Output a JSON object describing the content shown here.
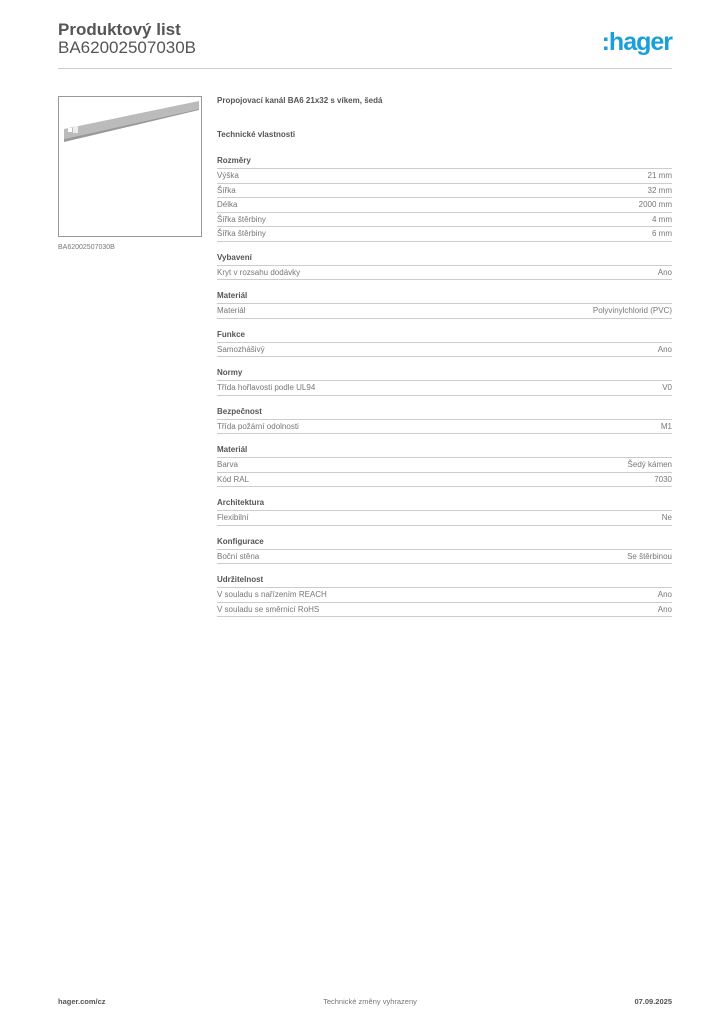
{
  "header": {
    "title": "Produktový list",
    "code": "BA62002507030B",
    "logo": ":hager"
  },
  "image": {
    "caption": "BA62002507030B"
  },
  "product_name": "Propojovací kanál BA6 21x32 s víkem, šedá",
  "tech_heading": "Technické vlastnosti",
  "sections": [
    {
      "title": "Rozměry",
      "rows": [
        [
          "Výška",
          "21 mm"
        ],
        [
          "Šířka",
          "32 mm"
        ],
        [
          "Délka",
          "2000 mm"
        ],
        [
          "Šířka štěrbiny",
          "4 mm"
        ],
        [
          "Šířka štěrbiny",
          "6 mm"
        ]
      ]
    },
    {
      "title": "Vybavení",
      "rows": [
        [
          "Kryt v rozsahu dodávky",
          "Ano"
        ]
      ]
    },
    {
      "title": "Materiál",
      "rows": [
        [
          "Materiál",
          "Polyvinylchlorid (PVC)"
        ]
      ]
    },
    {
      "title": "Funkce",
      "rows": [
        [
          "Samozhášivý",
          "Ano"
        ]
      ]
    },
    {
      "title": "Normy",
      "rows": [
        [
          "Třída hořlavosti podle UL94",
          "V0"
        ]
      ]
    },
    {
      "title": "Bezpečnost",
      "rows": [
        [
          "Třída požární odolnosti",
          "M1"
        ]
      ]
    },
    {
      "title": "Materiál",
      "rows": [
        [
          "Barva",
          "Šedý kámen"
        ],
        [
          "Kód RAL",
          "7030"
        ]
      ]
    },
    {
      "title": "Architektura",
      "rows": [
        [
          "Flexibilní",
          "Ne"
        ]
      ]
    },
    {
      "title": "Konfigurace",
      "rows": [
        [
          "Boční stěna",
          "Se štěrbinou"
        ]
      ]
    },
    {
      "title": "Udržitelnost",
      "rows": [
        [
          "V souladu s nařízením REACH",
          "Ano"
        ],
        [
          "V souladu se směrnicí RoHS",
          "Ano"
        ]
      ]
    }
  ],
  "footer": {
    "left": "hager.com/cz",
    "center": "Technické změny vyhrazeny",
    "right": "07.09.2025"
  },
  "colors": {
    "brand": "#1aa0d8"
  }
}
